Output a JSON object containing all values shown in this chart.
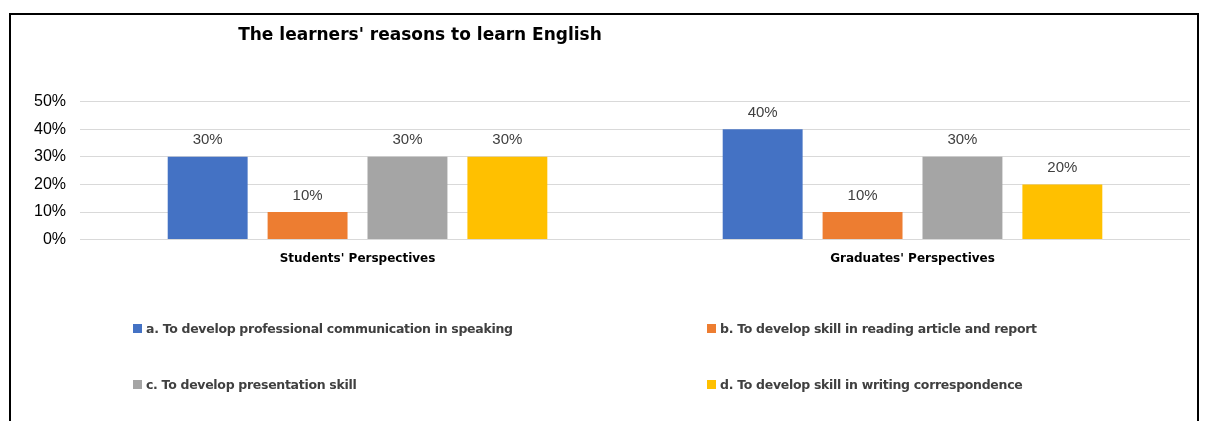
{
  "chart_data": {
    "type": "bar",
    "title": "The learners' reasons to learn English",
    "categories": [
      "Students' Perspectives",
      "Graduates' Perspectives"
    ],
    "series": [
      {
        "name": "a. To develop professional communication in speaking",
        "color": "#4472c4",
        "values": [
          30,
          40
        ],
        "value_labels": [
          "30%",
          "40%"
        ]
      },
      {
        "name": "b. To develop skill in reading article and report",
        "color": "#ed7d31",
        "values": [
          10,
          10
        ],
        "value_labels": [
          "10%",
          "10%"
        ]
      },
      {
        "name": "c. To develop presentation skill",
        "color": "#a5a5a5",
        "values": [
          30,
          30
        ],
        "value_labels": [
          "30%",
          "30%"
        ]
      },
      {
        "name": "d. To develop skill in writing correspondence",
        "color": "#ffc000",
        "values": [
          30,
          20
        ],
        "value_labels": [
          "30%",
          "20%"
        ]
      }
    ],
    "ylim": [
      0,
      50
    ],
    "yticks": [
      {
        "value": 0,
        "label": "0%"
      },
      {
        "value": 10,
        "label": "10%"
      },
      {
        "value": 20,
        "label": "20%"
      },
      {
        "value": 30,
        "label": "30%"
      },
      {
        "value": 40,
        "label": "40%"
      },
      {
        "value": 50,
        "label": "50%"
      }
    ],
    "grid": "y",
    "legend": "bottom"
  }
}
